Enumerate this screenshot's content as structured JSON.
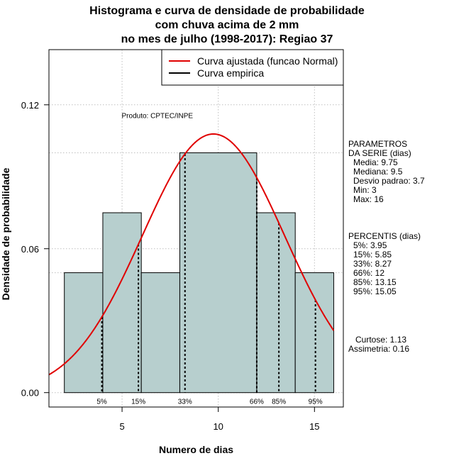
{
  "chart_data": {
    "type": "bar",
    "title_lines": [
      "Histograma e curva de densidade de probabilidade",
      "com chuva acima de 2 mm",
      "no mes de julho (1998-2017): Regiao 37"
    ],
    "xlabel": "Numero de dias",
    "ylabel": "Densidade de probabilidade",
    "xlim": [
      1.2,
      16.5
    ],
    "ylim": [
      -0.006,
      0.143
    ],
    "x_ticks": [
      5,
      10,
      15
    ],
    "y_ticks": [
      0.0,
      0.06,
      0.12
    ],
    "y_tick_labels": [
      "0.00",
      "0.06",
      "0.12"
    ],
    "grid": true,
    "bins": [
      {
        "from": 2,
        "to": 4,
        "density": 0.05
      },
      {
        "from": 4,
        "to": 6,
        "density": 0.075
      },
      {
        "from": 6,
        "to": 8,
        "density": 0.05
      },
      {
        "from": 8,
        "to": 12,
        "density": 0.1
      },
      {
        "from": 12,
        "to": 14,
        "density": 0.075
      },
      {
        "from": 14,
        "to": 16,
        "density": 0.05
      }
    ],
    "fitted_curve": {
      "name": "Curva ajustada (funcao Normal)",
      "mean": 9.75,
      "sd": 3.7,
      "x_range": [
        1.2,
        16
      ],
      "color": "#e00000"
    },
    "empirical_curve": {
      "name": "Curva empirica",
      "color": "#000000"
    },
    "percentile_lines": [
      {
        "label": "5%",
        "x": 3.95
      },
      {
        "label": "15%",
        "x": 5.85
      },
      {
        "label": "33%",
        "x": 8.27
      },
      {
        "label": "66%",
        "x": 12
      },
      {
        "label": "85%",
        "x": 13.15
      },
      {
        "label": "95%",
        "x": 15.05
      }
    ],
    "annotation": "Produto: CPTEC/INPE",
    "legend_position": "top-right",
    "colors": {
      "bar_fill": "#b7cfce",
      "bar_stroke": "#000000",
      "grid": "#bfbfbf",
      "fitted": "#e00000"
    }
  },
  "parameters": {
    "heading": [
      "PARAMETROS",
      "DA SERIE (dias)"
    ],
    "items": [
      "Media: 9.75",
      "Mediana: 9.5",
      "Desvio padrao: 3.7",
      "Min: 3",
      "Max: 16"
    ]
  },
  "percentiles": {
    "heading": "PERCENTIS (dias)",
    "items": [
      "5%: 3.95",
      "15%: 5.85",
      "33%: 8.27",
      "66%: 12",
      "85%: 13.15",
      "95%: 15.05"
    ]
  },
  "shape": {
    "items": [
      "Curtose: 1.13",
      "Assimetria: 0.16"
    ]
  }
}
